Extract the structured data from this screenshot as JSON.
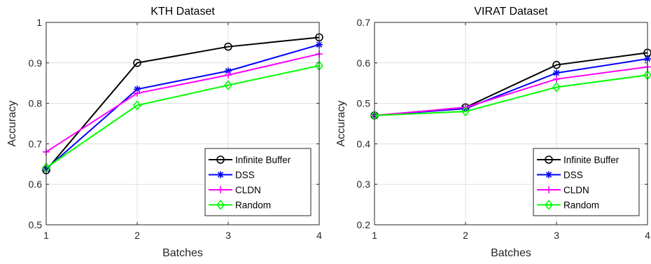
{
  "chart_data": [
    {
      "type": "line",
      "title": "KTH Dataset",
      "xlabel": "Batches",
      "ylabel": "Accuracy",
      "x": [
        1,
        2,
        3,
        4
      ],
      "xticks": [
        "1",
        "2",
        "3",
        "4"
      ],
      "ylim": [
        0.5,
        1.0
      ],
      "yticks": [
        "0.5",
        "0.6",
        "0.7",
        "0.8",
        "0.9",
        "1"
      ],
      "grid": true,
      "legend_position": "bottom-right",
      "series": [
        {
          "name": "Infinite Buffer",
          "color": "#000000",
          "marker": "circle",
          "values": [
            0.635,
            0.9,
            0.94,
            0.963
          ]
        },
        {
          "name": "DSS",
          "color": "#0000ff",
          "marker": "asterisk",
          "values": [
            0.638,
            0.835,
            0.88,
            0.945
          ]
        },
        {
          "name": "CLDN",
          "color": "#ff00ff",
          "marker": "plus",
          "values": [
            0.68,
            0.825,
            0.87,
            0.922
          ]
        },
        {
          "name": "Random",
          "color": "#00ff00",
          "marker": "diamond",
          "values": [
            0.641,
            0.795,
            0.845,
            0.893
          ]
        }
      ]
    },
    {
      "type": "line",
      "title": "VIRAT Dataset",
      "xlabel": "Batches",
      "ylabel": "Accuracy",
      "x": [
        1,
        2,
        3,
        4
      ],
      "xticks": [
        "1",
        "2",
        "3",
        "4"
      ],
      "ylim": [
        0.2,
        0.7
      ],
      "yticks": [
        "0.2",
        "0.3",
        "0.4",
        "0.5",
        "0.6",
        "0.7"
      ],
      "grid": true,
      "legend_position": "bottom-right",
      "series": [
        {
          "name": "Infinite Buffer",
          "color": "#000000",
          "marker": "circle",
          "values": [
            0.47,
            0.49,
            0.595,
            0.625
          ]
        },
        {
          "name": "DSS",
          "color": "#0000ff",
          "marker": "asterisk",
          "values": [
            0.47,
            0.487,
            0.575,
            0.61
          ]
        },
        {
          "name": "CLDN",
          "color": "#ff00ff",
          "marker": "plus",
          "values": [
            0.47,
            0.49,
            0.56,
            0.59
          ]
        },
        {
          "name": "Random",
          "color": "#00ff00",
          "marker": "diamond",
          "values": [
            0.47,
            0.48,
            0.54,
            0.57
          ]
        }
      ]
    }
  ]
}
